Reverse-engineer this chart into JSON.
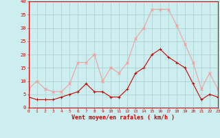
{
  "hours": [
    0,
    1,
    2,
    3,
    4,
    5,
    6,
    7,
    8,
    9,
    10,
    11,
    12,
    13,
    14,
    15,
    16,
    17,
    18,
    19,
    20,
    21,
    22,
    23
  ],
  "wind_avg": [
    4,
    3,
    3,
    3,
    4,
    5,
    6,
    9,
    6,
    6,
    4,
    4,
    7,
    13,
    15,
    20,
    22,
    19,
    17,
    15,
    9,
    3,
    5,
    4
  ],
  "wind_gust": [
    7,
    10,
    7,
    6,
    6,
    9,
    17,
    17,
    20,
    10,
    15,
    13,
    17,
    26,
    30,
    37,
    37,
    37,
    31,
    24,
    17,
    7,
    13,
    7
  ],
  "line_color_avg": "#cc0000",
  "line_color_gust": "#f0a0a0",
  "bg_color": "#cceeee",
  "grid_color": "#aacccc",
  "xlabel": "Vent moyen/en rafales ( km/h )",
  "xlabel_color": "#cc0000",
  "tick_color": "#cc0000",
  "ylim": [
    0,
    40
  ],
  "yticks": [
    0,
    5,
    10,
    15,
    20,
    25,
    30,
    35,
    40
  ],
  "marker_avg": "+",
  "marker_gust": "x",
  "figwidth": 3.2,
  "figheight": 2.0,
  "dpi": 100
}
